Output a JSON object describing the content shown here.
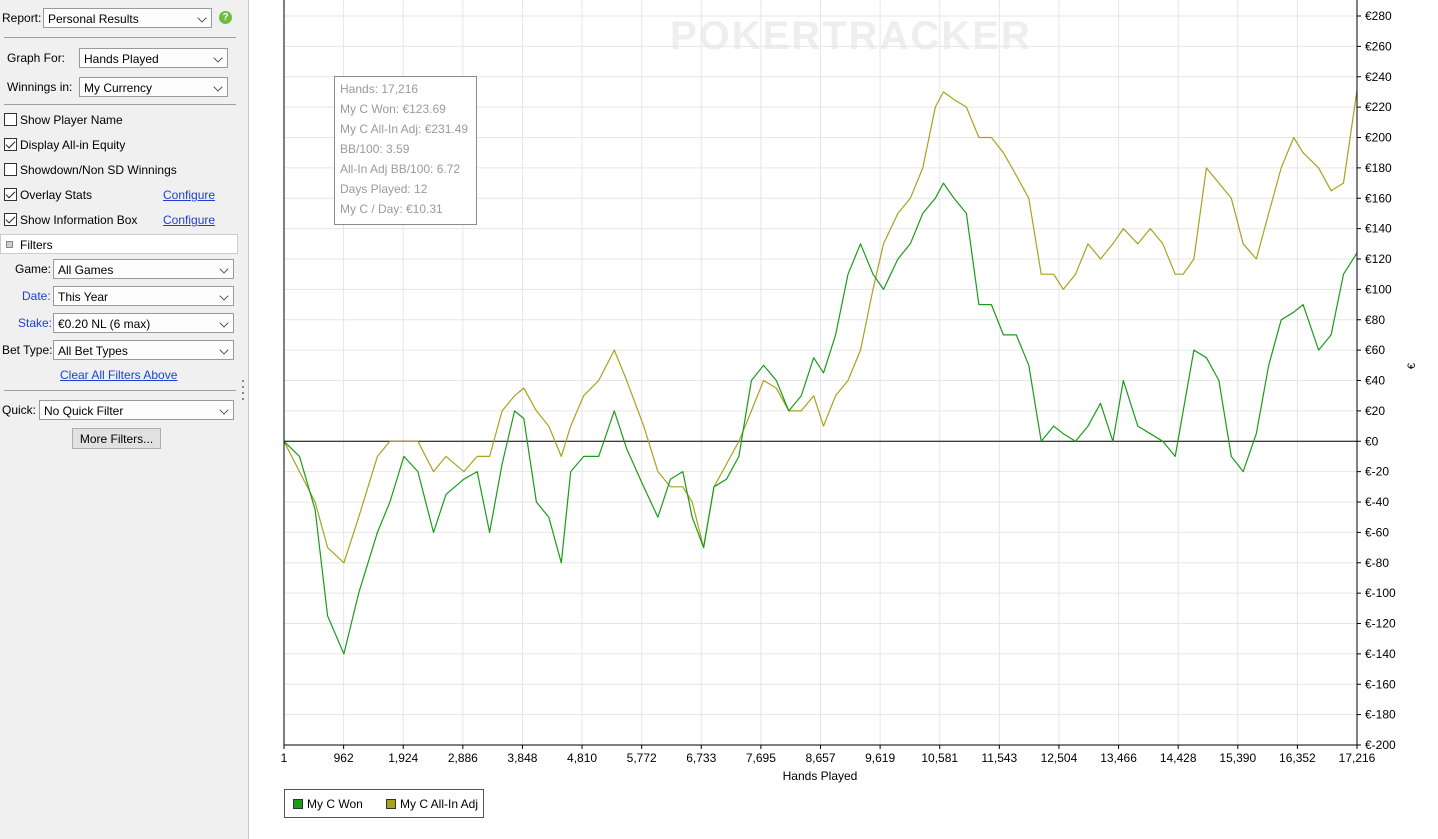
{
  "sidebar": {
    "report_label": "Report:",
    "report_value": "Personal Results",
    "graph_for_label": "Graph For:",
    "graph_for_value": "Hands Played",
    "winnings_in_label": "Winnings in:",
    "winnings_in_value": "My Currency",
    "checkboxes": [
      {
        "label": "Show Player Name",
        "checked": false
      },
      {
        "label": "Display All-in Equity",
        "checked": true
      },
      {
        "label": "Showdown/Non SD Winnings",
        "checked": false
      },
      {
        "label": "Overlay Stats",
        "checked": true
      },
      {
        "label": "Show Information Box",
        "checked": true
      }
    ],
    "configure_label": "Configure",
    "filters_title": "Filters",
    "game_label": "Game:",
    "game_value": "All Games",
    "date_label": "Date:",
    "date_value": "This Year",
    "stake_label": "Stake:",
    "stake_value": "€0.20 NL (6 max)",
    "bet_type_label": "Bet Type:",
    "bet_type_value": "All Bet Types",
    "clear_filters": "Clear All Filters Above",
    "quick_label": "Quick:",
    "quick_value": "No Quick Filter",
    "more_filters": "More Filters..."
  },
  "watermark": "POKERTRACKER",
  "info_box": [
    "Hands: 17,216",
    "My C Won: €123.69",
    "My C All-In Adj: €231.49",
    "BB/100: 3.59",
    "All-In Adj BB/100: 6.72",
    "Days Played: 12",
    "My C / Day: €10.31"
  ],
  "colors": {
    "won": "#1a9c1a",
    "allin": "#a8a21c",
    "zero_line": "#000000",
    "grid": "#e6e6e6"
  },
  "chart_data": {
    "type": "line",
    "xlabel": "Hands Played",
    "ylabel": "€",
    "x_ticks": [
      "1",
      "962",
      "1,924",
      "2,886",
      "3,848",
      "4,810",
      "5,772",
      "6,733",
      "7,695",
      "8,657",
      "9,619",
      "10,581",
      "11,543",
      "12,504",
      "13,466",
      "14,428",
      "15,390",
      "16,352",
      "17,216"
    ],
    "y_ticks": [
      "€280",
      "€260",
      "€240",
      "€220",
      "€200",
      "€180",
      "€160",
      "€140",
      "€120",
      "€100",
      "€80",
      "€60",
      "€40",
      "€20",
      "€0",
      "€-20",
      "€-40",
      "€-60",
      "€-80",
      "€-100",
      "€-120",
      "€-140",
      "€-160",
      "€-180",
      "€-200"
    ],
    "xlim": [
      1,
      17216
    ],
    "ylim": [
      -200,
      280
    ],
    "grid": true,
    "legend_position": "bottom-left",
    "x": [
      1,
      250,
      500,
      700,
      962,
      1200,
      1500,
      1700,
      1924,
      2150,
      2400,
      2600,
      2886,
      3100,
      3300,
      3500,
      3700,
      3848,
      4050,
      4250,
      4450,
      4600,
      4810,
      5050,
      5300,
      5500,
      5772,
      6000,
      6200,
      6400,
      6550,
      6733,
      6900,
      7100,
      7300,
      7500,
      7695,
      7900,
      8100,
      8300,
      8500,
      8657,
      8850,
      9050,
      9250,
      9450,
      9619,
      9850,
      10050,
      10250,
      10450,
      10581,
      10750,
      10950,
      11150,
      11350,
      11543,
      11750,
      11950,
      12150,
      12350,
      12504,
      12700,
      12900,
      13100,
      13300,
      13466,
      13700,
      13900,
      14100,
      14300,
      14428,
      14600,
      14800,
      15000,
      15200,
      15390,
      15600,
      15800,
      16000,
      16200,
      16352,
      16600,
      16800,
      17000,
      17216
    ],
    "series": [
      {
        "name": "My C Won",
        "values": [
          0,
          -10,
          -45,
          -115,
          -140,
          -100,
          -60,
          -40,
          -10,
          -20,
          -60,
          -35,
          -25,
          -20,
          -60,
          -15,
          20,
          15,
          -40,
          -50,
          -80,
          -20,
          -10,
          -10,
          20,
          -5,
          -30,
          -50,
          -25,
          -20,
          -50,
          -70,
          -30,
          -25,
          -10,
          40,
          50,
          40,
          20,
          30,
          55,
          45,
          70,
          110,
          130,
          110,
          100,
          120,
          130,
          150,
          160,
          170,
          160,
          150,
          90,
          90,
          70,
          70,
          50,
          0,
          10,
          5,
          0,
          10,
          25,
          0,
          40,
          10,
          5,
          0,
          -10,
          20,
          60,
          55,
          40,
          -10,
          -20,
          5,
          50,
          80,
          85,
          90,
          60,
          70,
          110,
          124
        ],
        "color": "#1a9c1a"
      },
      {
        "name": "My C All-In Adj",
        "values": [
          0,
          -20,
          -40,
          -70,
          -80,
          -50,
          -10,
          0,
          0,
          0,
          -20,
          -10,
          -20,
          -10,
          -10,
          20,
          30,
          35,
          20,
          10,
          -10,
          10,
          30,
          40,
          60,
          40,
          10,
          -20,
          -30,
          -30,
          -40,
          -70,
          -30,
          -15,
          0,
          20,
          40,
          35,
          20,
          20,
          30,
          10,
          30,
          40,
          60,
          100,
          130,
          150,
          160,
          180,
          220,
          230,
          225,
          220,
          200,
          200,
          190,
          175,
          160,
          110,
          110,
          100,
          110,
          130,
          120,
          130,
          140,
          130,
          140,
          130,
          110,
          110,
          120,
          180,
          170,
          160,
          130,
          120,
          150,
          180,
          200,
          190,
          180,
          165,
          170,
          231
        ],
        "color": "#a8a21c"
      }
    ]
  }
}
